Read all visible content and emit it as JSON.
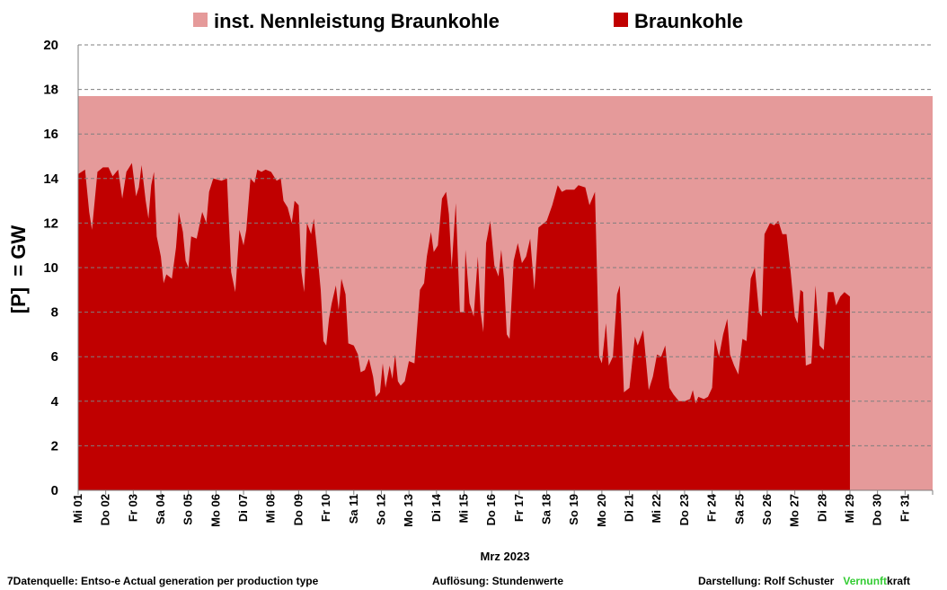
{
  "chart_data": {
    "type": "area",
    "xlabel": "Mrz 2023",
    "ylabel": "[P]  = GW",
    "ylim": [
      0,
      20
    ],
    "yticks": [
      0,
      2,
      4,
      6,
      8,
      10,
      12,
      14,
      16,
      18,
      20
    ],
    "grid": "horizontal dashed",
    "legend_position": "top",
    "x_tick_labels": [
      "Mi 01",
      "Do 02",
      "Fr 03",
      "Sa 04",
      "So 05",
      "Mo 06",
      "Di 07",
      "Mi 08",
      "Do 09",
      "Fr 10",
      "Sa 11",
      "So 12",
      "Mo 13",
      "Di 14",
      "Mi 15",
      "Do 16",
      "Fr 17",
      "Sa 18",
      "So 19",
      "Mo 20",
      "Di 21",
      "Mi 22",
      "Do 23",
      "Fr 24",
      "Sa 25",
      "So 26",
      "Mo 27",
      "Di 28",
      "Mi 29",
      "Do 30",
      "Fr 31"
    ],
    "x_unit": "day of March 2023",
    "series": [
      {
        "name": "inst. Nennleistung Braunkohle",
        "color": "#e59a9a",
        "values": [
          [
            1,
            17.7
          ],
          [
            32,
            17.7
          ]
        ]
      },
      {
        "name": "Braunkohle",
        "color": "#c00000",
        "values": [
          [
            1.0,
            14.2
          ],
          [
            1.25,
            14.4
          ],
          [
            1.4,
            12.5
          ],
          [
            1.5,
            11.7
          ],
          [
            1.7,
            14.3
          ],
          [
            1.9,
            14.5
          ],
          [
            2.1,
            14.5
          ],
          [
            2.25,
            14.1
          ],
          [
            2.45,
            14.4
          ],
          [
            2.6,
            13.1
          ],
          [
            2.75,
            14.3
          ],
          [
            2.95,
            14.7
          ],
          [
            3.1,
            13.2
          ],
          [
            3.2,
            13.6
          ],
          [
            3.3,
            14.6
          ],
          [
            3.45,
            13.0
          ],
          [
            3.55,
            12.2
          ],
          [
            3.65,
            13.7
          ],
          [
            3.75,
            14.3
          ],
          [
            3.85,
            11.4
          ],
          [
            4.0,
            10.5
          ],
          [
            4.1,
            9.3
          ],
          [
            4.2,
            9.7
          ],
          [
            4.4,
            9.5
          ],
          [
            4.55,
            10.9
          ],
          [
            4.65,
            12.5
          ],
          [
            4.8,
            11.6
          ],
          [
            4.9,
            10.3
          ],
          [
            5.0,
            10.0
          ],
          [
            5.1,
            11.4
          ],
          [
            5.3,
            11.3
          ],
          [
            5.5,
            12.5
          ],
          [
            5.65,
            12.0
          ],
          [
            5.75,
            13.4
          ],
          [
            5.9,
            14.0
          ],
          [
            6.2,
            13.9
          ],
          [
            6.4,
            14.0
          ],
          [
            6.55,
            9.8
          ],
          [
            6.7,
            8.9
          ],
          [
            6.85,
            11.7
          ],
          [
            7.0,
            11.0
          ],
          [
            7.1,
            11.7
          ],
          [
            7.25,
            14.0
          ],
          [
            7.4,
            13.8
          ],
          [
            7.5,
            14.4
          ],
          [
            7.65,
            14.3
          ],
          [
            7.8,
            14.4
          ],
          [
            8.0,
            14.3
          ],
          [
            8.2,
            13.9
          ],
          [
            8.35,
            14.0
          ],
          [
            8.45,
            13.0
          ],
          [
            8.6,
            12.7
          ],
          [
            8.75,
            12.0
          ],
          [
            8.85,
            13.0
          ],
          [
            9.0,
            12.8
          ],
          [
            9.1,
            9.8
          ],
          [
            9.2,
            8.9
          ],
          [
            9.3,
            12.0
          ],
          [
            9.45,
            11.5
          ],
          [
            9.55,
            12.2
          ],
          [
            9.65,
            11.0
          ],
          [
            9.8,
            9.0
          ],
          [
            9.9,
            6.7
          ],
          [
            10.0,
            6.5
          ],
          [
            10.1,
            7.7
          ],
          [
            10.2,
            8.4
          ],
          [
            10.35,
            9.2
          ],
          [
            10.45,
            8.1
          ],
          [
            10.55,
            9.5
          ],
          [
            10.7,
            8.8
          ],
          [
            10.8,
            6.6
          ],
          [
            11.0,
            6.5
          ],
          [
            11.15,
            6.1
          ],
          [
            11.25,
            5.3
          ],
          [
            11.4,
            5.4
          ],
          [
            11.55,
            5.9
          ],
          [
            11.7,
            5.1
          ],
          [
            11.8,
            4.2
          ],
          [
            11.95,
            4.4
          ],
          [
            12.05,
            5.7
          ],
          [
            12.15,
            4.6
          ],
          [
            12.3,
            5.6
          ],
          [
            12.4,
            5.0
          ],
          [
            12.5,
            6.1
          ],
          [
            12.6,
            4.9
          ],
          [
            12.7,
            4.7
          ],
          [
            12.85,
            4.9
          ],
          [
            13.0,
            5.8
          ],
          [
            13.2,
            5.7
          ],
          [
            13.4,
            9.0
          ],
          [
            13.55,
            9.3
          ],
          [
            13.65,
            10.5
          ],
          [
            13.8,
            11.6
          ],
          [
            13.9,
            10.7
          ],
          [
            14.05,
            11.0
          ],
          [
            14.2,
            13.1
          ],
          [
            14.35,
            13.4
          ],
          [
            14.45,
            12.4
          ],
          [
            14.55,
            10.0
          ],
          [
            14.7,
            12.9
          ],
          [
            14.85,
            8.0
          ],
          [
            15.0,
            8.0
          ],
          [
            15.05,
            10.8
          ],
          [
            15.2,
            8.4
          ],
          [
            15.35,
            7.8
          ],
          [
            15.5,
            10.5
          ],
          [
            15.6,
            8.0
          ],
          [
            15.7,
            7.1
          ],
          [
            15.8,
            11.1
          ],
          [
            15.95,
            12.1
          ],
          [
            16.1,
            10.1
          ],
          [
            16.25,
            9.6
          ],
          [
            16.35,
            10.8
          ],
          [
            16.45,
            9.5
          ],
          [
            16.55,
            7.0
          ],
          [
            16.65,
            6.8
          ],
          [
            16.8,
            10.3
          ],
          [
            16.95,
            11.1
          ],
          [
            17.1,
            10.2
          ],
          [
            17.25,
            10.5
          ],
          [
            17.4,
            11.3
          ],
          [
            17.55,
            9.0
          ],
          [
            17.7,
            11.8
          ],
          [
            18.0,
            12.1
          ],
          [
            18.2,
            12.8
          ],
          [
            18.4,
            13.7
          ],
          [
            18.55,
            13.4
          ],
          [
            18.7,
            13.5
          ],
          [
            19.0,
            13.5
          ],
          [
            19.15,
            13.7
          ],
          [
            19.4,
            13.6
          ],
          [
            19.55,
            12.8
          ],
          [
            19.75,
            13.4
          ],
          [
            19.9,
            6.0
          ],
          [
            20.0,
            5.7
          ],
          [
            20.15,
            7.5
          ],
          [
            20.25,
            5.6
          ],
          [
            20.4,
            6.0
          ],
          [
            20.55,
            8.8
          ],
          [
            20.65,
            9.2
          ],
          [
            20.8,
            4.4
          ],
          [
            21.0,
            4.6
          ],
          [
            21.2,
            6.9
          ],
          [
            21.3,
            6.5
          ],
          [
            21.5,
            7.2
          ],
          [
            21.7,
            4.5
          ],
          [
            21.85,
            5.1
          ],
          [
            22.0,
            6.1
          ],
          [
            22.15,
            6.0
          ],
          [
            22.3,
            6.5
          ],
          [
            22.45,
            4.6
          ],
          [
            22.6,
            4.3
          ],
          [
            22.8,
            4.0
          ],
          [
            23.0,
            4.0
          ],
          [
            23.2,
            4.1
          ],
          [
            23.3,
            4.5
          ],
          [
            23.4,
            3.9
          ],
          [
            23.5,
            4.2
          ],
          [
            23.7,
            4.1
          ],
          [
            23.85,
            4.2
          ],
          [
            24.0,
            4.6
          ],
          [
            24.1,
            6.8
          ],
          [
            24.25,
            6.0
          ],
          [
            24.4,
            7.0
          ],
          [
            24.55,
            7.7
          ],
          [
            24.65,
            6.1
          ],
          [
            24.8,
            5.6
          ],
          [
            24.95,
            5.2
          ],
          [
            25.1,
            6.8
          ],
          [
            25.25,
            6.7
          ],
          [
            25.4,
            9.5
          ],
          [
            25.55,
            10.0
          ],
          [
            25.7,
            8.0
          ],
          [
            25.8,
            7.8
          ],
          [
            25.9,
            11.5
          ],
          [
            26.1,
            12.0
          ],
          [
            26.25,
            11.9
          ],
          [
            26.4,
            12.1
          ],
          [
            26.55,
            11.5
          ],
          [
            26.7,
            11.5
          ],
          [
            26.85,
            9.8
          ],
          [
            27.0,
            7.8
          ],
          [
            27.1,
            7.5
          ],
          [
            27.2,
            9.0
          ],
          [
            27.3,
            8.9
          ],
          [
            27.4,
            5.6
          ],
          [
            27.6,
            5.7
          ],
          [
            27.75,
            9.2
          ],
          [
            27.9,
            6.5
          ],
          [
            28.05,
            6.3
          ],
          [
            28.2,
            8.9
          ],
          [
            28.4,
            8.9
          ],
          [
            28.5,
            8.3
          ],
          [
            28.65,
            8.7
          ],
          [
            28.8,
            8.9
          ],
          [
            29.0,
            8.7
          ]
        ]
      }
    ]
  },
  "footer": {
    "source": "7Datenquelle: Entso-e  Actual generation per production type",
    "resolution": "Auflösung: Stundenwerte",
    "author": "Darstellung:  Rolf Schuster",
    "brand_part1": "Vernunft",
    "brand_part2": "kraft"
  }
}
